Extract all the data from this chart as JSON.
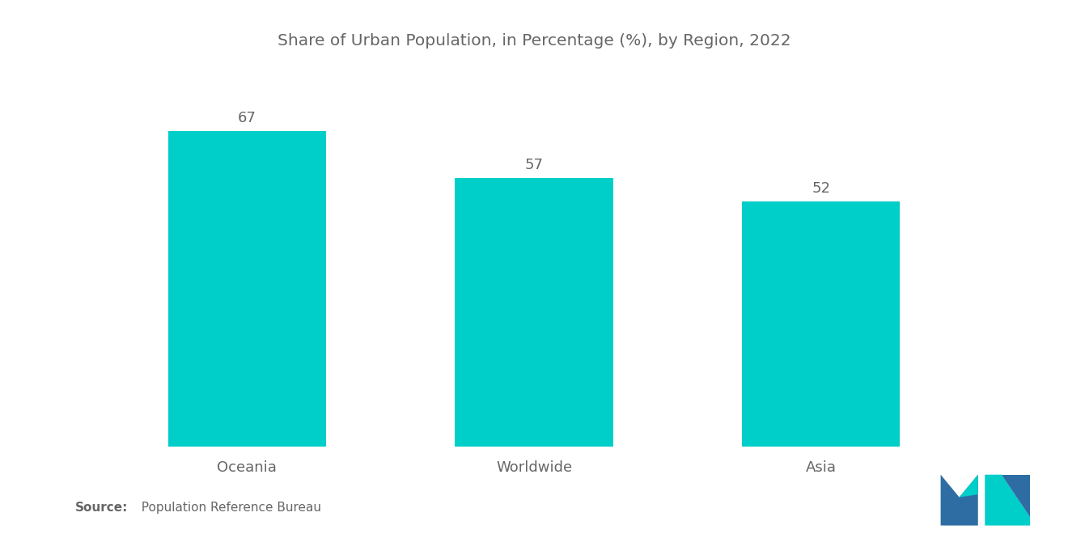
{
  "title": "Share of Urban Population, in Percentage (%), by Region, 2022",
  "categories": [
    "Oceania",
    "Worldwide",
    "Asia"
  ],
  "values": [
    67,
    57,
    52
  ],
  "bar_color": "#00CEC9",
  "background_color": "#ffffff",
  "title_fontsize": 14.5,
  "label_fontsize": 13,
  "value_fontsize": 13,
  "source_bold": "Source:",
  "source_rest": "  Population Reference Bureau",
  "ylim": [
    0,
    80
  ],
  "bar_width": 0.55,
  "text_color": "#666666",
  "logo_m_color": "#2E6DA4",
  "logo_n_color": "#00CEC9"
}
